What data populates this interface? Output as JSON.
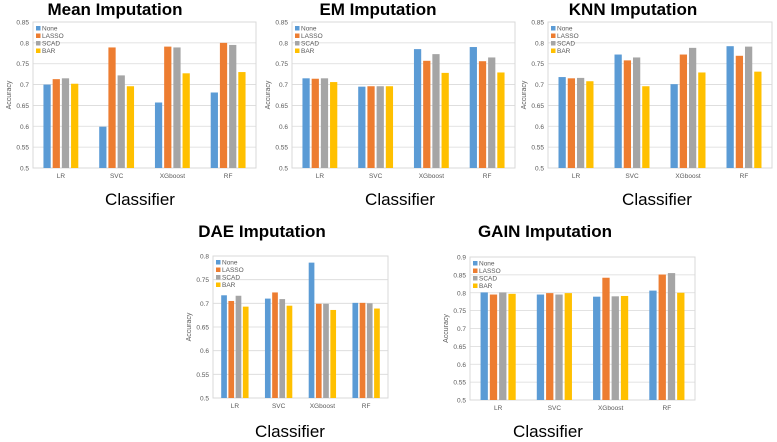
{
  "chart_data": [
    {
      "type": "bar",
      "title": "Mean Imputation",
      "xlabel": "Classifier",
      "ylabel": "Accuracy",
      "ylim": [
        0.5,
        0.85
      ],
      "yticks": [
        "0.5",
        "0.55",
        "0.6",
        "0.65",
        "0.7",
        "0.75",
        "0.8",
        "0.85"
      ],
      "categories": [
        "LR",
        "SVC",
        "XGboost",
        "RF"
      ],
      "series": [
        {
          "name": "None",
          "values": [
            0.7,
            0.599,
            0.657,
            0.681
          ]
        },
        {
          "name": "LASSO",
          "values": [
            0.713,
            0.789,
            0.791,
            0.8
          ]
        },
        {
          "name": "SCAD",
          "values": [
            0.715,
            0.722,
            0.789,
            0.795
          ]
        },
        {
          "name": "BAR",
          "values": [
            0.702,
            0.696,
            0.727,
            0.73
          ]
        }
      ],
      "legend": "top-left",
      "grid": true
    },
    {
      "type": "bar",
      "title": "EM Imputation",
      "xlabel": "Classifier",
      "ylabel": "Accuracy",
      "ylim": [
        0.5,
        0.85
      ],
      "yticks": [
        "0.5",
        "0.55",
        "0.6",
        "0.65",
        "0.7",
        "0.75",
        "0.8",
        "0.85"
      ],
      "categories": [
        "LR",
        "SVC",
        "XGboost",
        "RF"
      ],
      "series": [
        {
          "name": "None",
          "values": [
            0.715,
            0.695,
            0.785,
            0.79
          ]
        },
        {
          "name": "LASSO",
          "values": [
            0.714,
            0.696,
            0.757,
            0.756
          ]
        },
        {
          "name": "SCAD",
          "values": [
            0.715,
            0.696,
            0.773,
            0.765
          ]
        },
        {
          "name": "BAR",
          "values": [
            0.706,
            0.696,
            0.728,
            0.729
          ]
        }
      ],
      "legend": "top-left",
      "grid": true
    },
    {
      "type": "bar",
      "title": "KNN Imputation",
      "xlabel": "Classifier",
      "ylabel": "Accuracy",
      "ylim": [
        0.5,
        0.85
      ],
      "yticks": [
        "0.5",
        "0.55",
        "0.6",
        "0.65",
        "0.7",
        "0.75",
        "0.8",
        "0.85"
      ],
      "categories": [
        "LR",
        "SVC",
        "XGboost",
        "RF"
      ],
      "series": [
        {
          "name": "None",
          "values": [
            0.718,
            0.772,
            0.701,
            0.792
          ]
        },
        {
          "name": "LASSO",
          "values": [
            0.715,
            0.758,
            0.772,
            0.769
          ]
        },
        {
          "name": "SCAD",
          "values": [
            0.716,
            0.765,
            0.788,
            0.791
          ]
        },
        {
          "name": "BAR",
          "values": [
            0.708,
            0.696,
            0.729,
            0.731
          ]
        }
      ],
      "legend": "top-left",
      "grid": true
    },
    {
      "type": "bar",
      "title": "DAE Imputation",
      "xlabel": "Classifier",
      "ylabel": "Accuracy",
      "ylim": [
        0.5,
        0.8
      ],
      "yticks": [
        "0.5",
        "0.55",
        "0.6",
        "0.65",
        "0.7",
        "0.75",
        "0.8"
      ],
      "categories": [
        "LR",
        "SVC",
        "XGboost",
        "RF"
      ],
      "series": [
        {
          "name": "None",
          "values": [
            0.717,
            0.71,
            0.786,
            0.701
          ]
        },
        {
          "name": "LASSO",
          "values": [
            0.705,
            0.723,
            0.699,
            0.701
          ]
        },
        {
          "name": "SCAD",
          "values": [
            0.716,
            0.709,
            0.699,
            0.7
          ]
        },
        {
          "name": "BAR",
          "values": [
            0.693,
            0.695,
            0.686,
            0.689
          ]
        }
      ],
      "legend": "top-left",
      "grid": true
    },
    {
      "type": "bar",
      "title": "GAIN Imputation",
      "xlabel": "Classifier",
      "ylabel": "Accuracy",
      "ylim": [
        0.5,
        0.9
      ],
      "yticks": [
        "0.5",
        "0.55",
        "0.6",
        "0.65",
        "0.7",
        "0.75",
        "0.8",
        "0.85",
        "0.9"
      ],
      "categories": [
        "LR",
        "SVC",
        "XGboost",
        "RF"
      ],
      "series": [
        {
          "name": "None",
          "values": [
            0.801,
            0.795,
            0.789,
            0.806
          ]
        },
        {
          "name": "LASSO",
          "values": [
            0.795,
            0.799,
            0.842,
            0.851
          ]
        },
        {
          "name": "SCAD",
          "values": [
            0.801,
            0.795,
            0.79,
            0.855
          ]
        },
        {
          "name": "BAR",
          "values": [
            0.797,
            0.799,
            0.791,
            0.8
          ]
        }
      ],
      "legend": "top-left",
      "grid": true
    }
  ],
  "colors": {
    "None": "#5b9bd5",
    "LASSO": "#ed7d31",
    "SCAD": "#a5a5a5",
    "BAR": "#ffc000"
  }
}
